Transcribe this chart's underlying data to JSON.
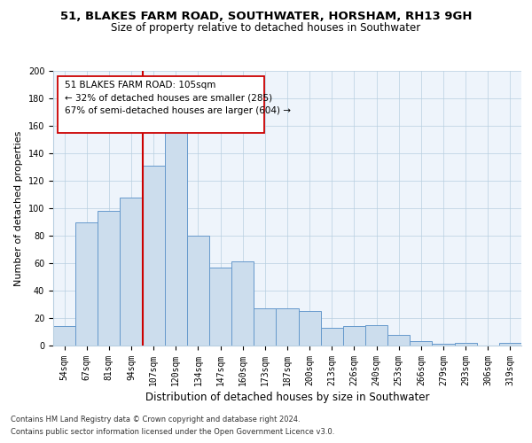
{
  "title1": "51, BLAKES FARM ROAD, SOUTHWATER, HORSHAM, RH13 9GH",
  "title2": "Size of property relative to detached houses in Southwater",
  "xlabel": "Distribution of detached houses by size in Southwater",
  "ylabel": "Number of detached properties",
  "categories": [
    "54sqm",
    "67sqm",
    "81sqm",
    "94sqm",
    "107sqm",
    "120sqm",
    "134sqm",
    "147sqm",
    "160sqm",
    "173sqm",
    "187sqm",
    "200sqm",
    "213sqm",
    "226sqm",
    "240sqm",
    "253sqm",
    "266sqm",
    "279sqm",
    "293sqm",
    "306sqm",
    "319sqm"
  ],
  "values": [
    14,
    90,
    98,
    108,
    131,
    157,
    80,
    57,
    61,
    27,
    27,
    25,
    13,
    14,
    15,
    8,
    3,
    1,
    2,
    0,
    2
  ],
  "bar_color": "#ccdded",
  "bar_edge_color": "#6699cc",
  "vline_color": "#cc0000",
  "vline_pos": 4.5,
  "annotation_line1": "51 BLAKES FARM ROAD: 105sqm",
  "annotation_line2": "← 32% of detached houses are smaller (285)",
  "annotation_line3": "67% of semi-detached houses are larger (604) →",
  "ylim": [
    0,
    200
  ],
  "yticks": [
    0,
    20,
    40,
    60,
    80,
    100,
    120,
    140,
    160,
    180,
    200
  ],
  "footnote1": "Contains HM Land Registry data © Crown copyright and database right 2024.",
  "footnote2": "Contains public sector information licensed under the Open Government Licence v3.0.",
  "bg_color": "#eef4fb",
  "grid_color": "#b8cfe0",
  "title1_fontsize": 9.5,
  "title2_fontsize": 8.5,
  "ylabel_fontsize": 8,
  "xlabel_fontsize": 8.5,
  "tick_fontsize": 7,
  "annot_fontsize": 7.5,
  "footnote_fontsize": 6
}
